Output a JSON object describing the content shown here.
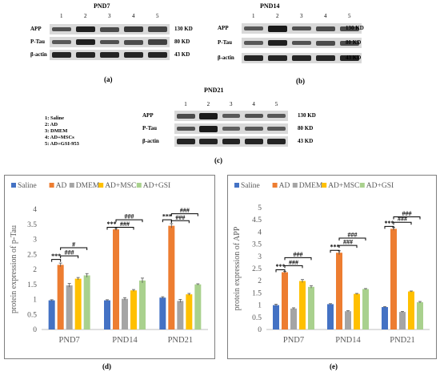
{
  "blots": [
    {
      "title": "PND7",
      "letter": "(a)",
      "lanes": [
        "1",
        "2",
        "3",
        "4",
        "5"
      ],
      "rows": [
        {
          "label": "APP",
          "kd": "130 KD",
          "bands": [
            0.55,
            0.95,
            0.6,
            0.75,
            0.65
          ]
        },
        {
          "label": "P-Tau",
          "kd": "80 KD",
          "bands": [
            0.5,
            0.95,
            0.55,
            0.6,
            0.7
          ]
        },
        {
          "label": "β-actin",
          "kd": "43 KD",
          "bands": [
            0.9,
            0.9,
            0.9,
            0.9,
            0.9
          ]
        }
      ]
    },
    {
      "title": "PND14",
      "letter": "(b)",
      "lanes": [
        "1",
        "2",
        "3",
        "4",
        "5"
      ],
      "rows": [
        {
          "label": "APP",
          "kd": "130 KD",
          "bands": [
            0.5,
            1.0,
            0.55,
            0.6,
            0.6
          ]
        },
        {
          "label": "P-Tau",
          "kd": "80 KD",
          "bands": [
            0.5,
            0.95,
            0.55,
            0.6,
            0.6
          ]
        },
        {
          "label": "β-actin",
          "kd": "43 KD",
          "bands": [
            0.9,
            0.9,
            0.9,
            0.9,
            0.9
          ]
        }
      ]
    },
    {
      "title": "PND21",
      "letter": "(c)",
      "lanes": [
        "1",
        "2",
        "3",
        "4",
        "5"
      ],
      "rows": [
        {
          "label": "APP",
          "kd": "130 KD",
          "bands": [
            0.6,
            1.0,
            0.5,
            0.55,
            0.5
          ]
        },
        {
          "label": "P-Tau",
          "kd": "80 KD",
          "bands": [
            0.55,
            1.0,
            0.45,
            0.5,
            0.5
          ]
        },
        {
          "label": "β-actin",
          "kd": "43 KD",
          "bands": [
            0.9,
            0.9,
            0.9,
            0.9,
            0.9
          ]
        }
      ]
    }
  ],
  "key": [
    "1: Saline",
    "2: AD",
    "3: DMEM",
    "4: AD+MSCs",
    "5: AD+GSI-953"
  ],
  "colors": {
    "Saline": "#4472c4",
    "AD": "#ed7d31",
    "DMEM": "#a5a5a5",
    "AD+MSC": "#ffc000",
    "AD+GSI": "#a9d18e"
  },
  "chart_data": [
    {
      "type": "bar",
      "letter": "(d)",
      "title": "",
      "xlabel": "",
      "ylabel": "protein expression of p-Tau",
      "ylim": [
        0,
        4
      ],
      "yticks": [
        "0",
        "0.5",
        "1",
        "1.5",
        "2",
        "2.5",
        "3",
        "3.5",
        "4"
      ],
      "categories": [
        "PND7",
        "PND14",
        "PND21"
      ],
      "legend_position": "top",
      "grid": false,
      "series": [
        {
          "name": "Saline",
          "values": [
            0.97,
            0.97,
            1.06
          ],
          "errors": [
            0.02,
            0.02,
            0.03
          ]
        },
        {
          "name": "AD",
          "values": [
            2.15,
            3.33,
            3.45
          ],
          "errors": [
            0.06,
            0.03,
            0.07
          ]
        },
        {
          "name": "DMEM",
          "values": [
            1.47,
            1.02,
            0.95
          ],
          "errors": [
            0.06,
            0.04,
            0.05
          ]
        },
        {
          "name": "AD+MSC",
          "values": [
            1.69,
            1.3,
            1.17
          ],
          "errors": [
            0.04,
            0.03,
            0.03
          ]
        },
        {
          "name": "AD+GSI",
          "values": [
            1.8,
            1.63,
            1.5
          ],
          "errors": [
            0.06,
            0.08,
            0.02
          ]
        }
      ],
      "annotations": [
        {
          "cat": 0,
          "from": 0,
          "to": 1,
          "level": 2.33,
          "text": "***"
        },
        {
          "cat": 0,
          "from": 1,
          "to": 3,
          "level": 2.45,
          "text": "###"
        },
        {
          "cat": 0,
          "from": 1,
          "to": 4,
          "level": 2.72,
          "text": "#"
        },
        {
          "cat": 1,
          "from": 0,
          "to": 1,
          "level": 3.4,
          "text": "***"
        },
        {
          "cat": 1,
          "from": 1,
          "to": 3,
          "level": 3.4,
          "text": "###"
        },
        {
          "cat": 1,
          "from": 1,
          "to": 4,
          "level": 3.65,
          "text": "###"
        },
        {
          "cat": 2,
          "from": 0,
          "to": 1,
          "level": 3.65,
          "text": "***"
        },
        {
          "cat": 2,
          "from": 1,
          "to": 3,
          "level": 3.62,
          "text": "###"
        },
        {
          "cat": 2,
          "from": 1,
          "to": 4,
          "level": 3.85,
          "text": "###"
        }
      ]
    },
    {
      "type": "bar",
      "letter": "(e)",
      "title": "",
      "xlabel": "",
      "ylabel": "protein expression of APP",
      "ylim": [
        0,
        5
      ],
      "yticks": [
        "0",
        "0.5",
        "1",
        "1.5",
        "2",
        "2.5",
        "3",
        "3.5",
        "4",
        "4.5",
        "5"
      ],
      "categories": [
        "PND7",
        "PND14",
        "PND21"
      ],
      "legend_position": "top",
      "grid": false,
      "series": [
        {
          "name": "Saline",
          "values": [
            1.0,
            1.04,
            0.92
          ],
          "errors": [
            0.04,
            0.02,
            0.02
          ]
        },
        {
          "name": "AD",
          "values": [
            2.35,
            3.15,
            4.13
          ],
          "errors": [
            0.03,
            0.08,
            0.06
          ]
        },
        {
          "name": "DMEM",
          "values": [
            0.86,
            0.75,
            0.72
          ],
          "errors": [
            0.03,
            0.02,
            0.02
          ]
        },
        {
          "name": "AD+MSC",
          "values": [
            1.99,
            1.46,
            1.56
          ],
          "errors": [
            0.06,
            0.02,
            0.02
          ]
        },
        {
          "name": "AD+GSI",
          "values": [
            1.75,
            1.66,
            1.12
          ],
          "errors": [
            0.05,
            0.02,
            0.03
          ]
        }
      ],
      "annotations": [
        {
          "cat": 0,
          "from": 0,
          "to": 1,
          "level": 2.45,
          "text": "***"
        },
        {
          "cat": 0,
          "from": 1,
          "to": 3,
          "level": 2.62,
          "text": "###"
        },
        {
          "cat": 0,
          "from": 1,
          "to": 4,
          "level": 2.95,
          "text": "###"
        },
        {
          "cat": 1,
          "from": 0,
          "to": 1,
          "level": 3.25,
          "text": "***"
        },
        {
          "cat": 1,
          "from": 1,
          "to": 3,
          "level": 3.45,
          "text": "###"
        },
        {
          "cat": 1,
          "from": 1,
          "to": 4,
          "level": 3.75,
          "text": "###"
        },
        {
          "cat": 2,
          "from": 0,
          "to": 1,
          "level": 4.23,
          "text": "***"
        },
        {
          "cat": 2,
          "from": 1,
          "to": 3,
          "level": 4.4,
          "text": "###"
        },
        {
          "cat": 2,
          "from": 1,
          "to": 4,
          "level": 4.62,
          "text": "###"
        }
      ]
    }
  ]
}
